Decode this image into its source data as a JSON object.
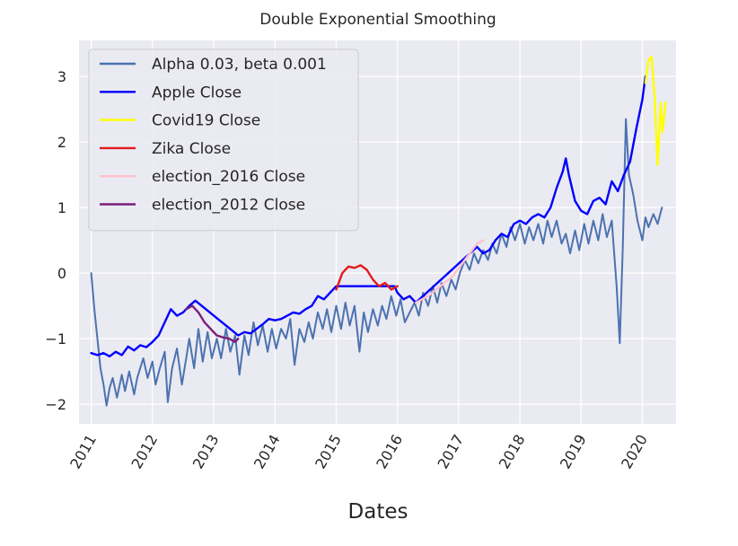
{
  "chart_data": {
    "type": "line",
    "title": "Double Exponential Smoothing",
    "xlabel": "Dates",
    "ylabel": "",
    "xlim": [
      2010.8,
      2020.55
    ],
    "ylim": [
      -2.3,
      3.55
    ],
    "x_ticks": [
      "2011",
      "2012",
      "2013",
      "2014",
      "2015",
      "2016",
      "2017",
      "2018",
      "2019",
      "2020"
    ],
    "y_ticks": [
      {
        "value": -2,
        "label": "−2"
      },
      {
        "value": -1,
        "label": "−1"
      },
      {
        "value": 0,
        "label": "0"
      },
      {
        "value": 1,
        "label": "1"
      },
      {
        "value": 2,
        "label": "2"
      },
      {
        "value": 3,
        "label": "3"
      }
    ],
    "grid": true,
    "legend_position": "top-left",
    "series": [
      {
        "name": "Alpha 0.03, beta 0.001",
        "color": "#4c72b0",
        "points": [
          [
            2011.0,
            0.0
          ],
          [
            2011.05,
            -0.55
          ],
          [
            2011.1,
            -1.0
          ],
          [
            2011.15,
            -1.45
          ],
          [
            2011.2,
            -1.7
          ],
          [
            2011.25,
            -2.02
          ],
          [
            2011.3,
            -1.75
          ],
          [
            2011.35,
            -1.6
          ],
          [
            2011.42,
            -1.9
          ],
          [
            2011.5,
            -1.55
          ],
          [
            2011.55,
            -1.8
          ],
          [
            2011.62,
            -1.5
          ],
          [
            2011.7,
            -1.85
          ],
          [
            2011.75,
            -1.6
          ],
          [
            2011.85,
            -1.3
          ],
          [
            2011.92,
            -1.6
          ],
          [
            2012.0,
            -1.35
          ],
          [
            2012.05,
            -1.7
          ],
          [
            2012.12,
            -1.45
          ],
          [
            2012.2,
            -1.2
          ],
          [
            2012.25,
            -1.97
          ],
          [
            2012.32,
            -1.45
          ],
          [
            2012.4,
            -1.15
          ],
          [
            2012.48,
            -1.7
          ],
          [
            2012.55,
            -1.3
          ],
          [
            2012.6,
            -1.0
          ],
          [
            2012.68,
            -1.45
          ],
          [
            2012.75,
            -0.85
          ],
          [
            2012.82,
            -1.35
          ],
          [
            2012.9,
            -0.9
          ],
          [
            2012.97,
            -1.3
          ],
          [
            2013.05,
            -1.0
          ],
          [
            2013.12,
            -1.3
          ],
          [
            2013.2,
            -0.85
          ],
          [
            2013.27,
            -1.2
          ],
          [
            2013.35,
            -0.95
          ],
          [
            2013.42,
            -1.55
          ],
          [
            2013.5,
            -0.95
          ],
          [
            2013.57,
            -1.25
          ],
          [
            2013.65,
            -0.75
          ],
          [
            2013.72,
            -1.1
          ],
          [
            2013.8,
            -0.8
          ],
          [
            2013.88,
            -1.2
          ],
          [
            2013.95,
            -0.85
          ],
          [
            2014.02,
            -1.15
          ],
          [
            2014.1,
            -0.85
          ],
          [
            2014.18,
            -1.0
          ],
          [
            2014.25,
            -0.7
          ],
          [
            2014.32,
            -1.4
          ],
          [
            2014.4,
            -0.85
          ],
          [
            2014.48,
            -1.05
          ],
          [
            2014.55,
            -0.75
          ],
          [
            2014.62,
            -1.0
          ],
          [
            2014.7,
            -0.6
          ],
          [
            2014.78,
            -0.85
          ],
          [
            2014.85,
            -0.55
          ],
          [
            2014.92,
            -0.9
          ],
          [
            2015.0,
            -0.5
          ],
          [
            2015.08,
            -0.85
          ],
          [
            2015.15,
            -0.45
          ],
          [
            2015.22,
            -0.8
          ],
          [
            2015.3,
            -0.5
          ],
          [
            2015.38,
            -1.2
          ],
          [
            2015.45,
            -0.6
          ],
          [
            2015.52,
            -0.9
          ],
          [
            2015.6,
            -0.55
          ],
          [
            2015.68,
            -0.8
          ],
          [
            2015.75,
            -0.5
          ],
          [
            2015.82,
            -0.7
          ],
          [
            2015.9,
            -0.35
          ],
          [
            2015.98,
            -0.65
          ],
          [
            2016.05,
            -0.4
          ],
          [
            2016.12,
            -0.75
          ],
          [
            2016.2,
            -0.6
          ],
          [
            2016.28,
            -0.45
          ],
          [
            2016.35,
            -0.65
          ],
          [
            2016.42,
            -0.3
          ],
          [
            2016.5,
            -0.5
          ],
          [
            2016.58,
            -0.2
          ],
          [
            2016.65,
            -0.45
          ],
          [
            2016.72,
            -0.15
          ],
          [
            2016.8,
            -0.35
          ],
          [
            2016.88,
            -0.1
          ],
          [
            2016.95,
            -0.25
          ],
          [
            2017.02,
            0.0
          ],
          [
            2017.1,
            0.2
          ],
          [
            2017.18,
            0.05
          ],
          [
            2017.25,
            0.3
          ],
          [
            2017.32,
            0.15
          ],
          [
            2017.4,
            0.35
          ],
          [
            2017.48,
            0.2
          ],
          [
            2017.55,
            0.45
          ],
          [
            2017.62,
            0.3
          ],
          [
            2017.7,
            0.6
          ],
          [
            2017.78,
            0.4
          ],
          [
            2017.85,
            0.7
          ],
          [
            2017.92,
            0.5
          ],
          [
            2018.0,
            0.75
          ],
          [
            2018.08,
            0.45
          ],
          [
            2018.15,
            0.7
          ],
          [
            2018.22,
            0.5
          ],
          [
            2018.3,
            0.75
          ],
          [
            2018.38,
            0.45
          ],
          [
            2018.45,
            0.8
          ],
          [
            2018.52,
            0.55
          ],
          [
            2018.6,
            0.8
          ],
          [
            2018.68,
            0.45
          ],
          [
            2018.75,
            0.6
          ],
          [
            2018.82,
            0.3
          ],
          [
            2018.9,
            0.65
          ],
          [
            2018.97,
            0.35
          ],
          [
            2019.05,
            0.75
          ],
          [
            2019.12,
            0.45
          ],
          [
            2019.2,
            0.8
          ],
          [
            2019.28,
            0.5
          ],
          [
            2019.35,
            0.9
          ],
          [
            2019.42,
            0.55
          ],
          [
            2019.5,
            0.8
          ],
          [
            2019.58,
            -0.2
          ],
          [
            2019.63,
            -1.07
          ],
          [
            2019.68,
            0.4
          ],
          [
            2019.73,
            2.35
          ],
          [
            2019.78,
            1.5
          ],
          [
            2019.85,
            1.2
          ],
          [
            2019.92,
            0.8
          ],
          [
            2020.0,
            0.5
          ],
          [
            2020.05,
            0.85
          ],
          [
            2020.1,
            0.7
          ],
          [
            2020.18,
            0.9
          ],
          [
            2020.25,
            0.75
          ],
          [
            2020.32,
            1.0
          ]
        ]
      },
      {
        "name": "Apple Close",
        "color": "#0000ff",
        "points": [
          [
            2011.0,
            -1.22
          ],
          [
            2011.1,
            -1.25
          ],
          [
            2011.2,
            -1.22
          ],
          [
            2011.3,
            -1.27
          ],
          [
            2011.4,
            -1.2
          ],
          [
            2011.5,
            -1.25
          ],
          [
            2011.6,
            -1.12
          ],
          [
            2011.7,
            -1.18
          ],
          [
            2011.8,
            -1.1
          ],
          [
            2011.9,
            -1.13
          ],
          [
            2012.0,
            -1.05
          ],
          [
            2012.1,
            -0.95
          ],
          [
            2012.2,
            -0.75
          ],
          [
            2012.3,
            -0.55
          ],
          [
            2012.4,
            -0.65
          ],
          [
            2012.5,
            -0.6
          ],
          [
            2012.6,
            -0.5
          ],
          [
            2012.7,
            -0.42
          ],
          [
            2013.4,
            -0.95
          ],
          [
            2013.5,
            -0.9
          ],
          [
            2013.6,
            -0.92
          ],
          [
            2013.7,
            -0.85
          ],
          [
            2013.8,
            -0.78
          ],
          [
            2013.9,
            -0.7
          ],
          [
            2014.0,
            -0.72
          ],
          [
            2014.1,
            -0.7
          ],
          [
            2014.2,
            -0.65
          ],
          [
            2014.3,
            -0.6
          ],
          [
            2014.4,
            -0.62
          ],
          [
            2014.5,
            -0.55
          ],
          [
            2014.6,
            -0.5
          ],
          [
            2014.7,
            -0.35
          ],
          [
            2014.8,
            -0.4
          ],
          [
            2014.9,
            -0.3
          ],
          [
            2015.0,
            -0.2
          ],
          [
            2015.95,
            -0.2
          ],
          [
            2016.0,
            -0.3
          ],
          [
            2016.1,
            -0.4
          ],
          [
            2016.2,
            -0.35
          ],
          [
            2016.3,
            -0.45
          ],
          [
            2017.3,
            0.4
          ],
          [
            2017.4,
            0.3
          ],
          [
            2017.5,
            0.35
          ],
          [
            2017.6,
            0.5
          ],
          [
            2017.7,
            0.6
          ],
          [
            2017.8,
            0.55
          ],
          [
            2017.9,
            0.75
          ],
          [
            2018.0,
            0.8
          ],
          [
            2018.1,
            0.75
          ],
          [
            2018.2,
            0.85
          ],
          [
            2018.3,
            0.9
          ],
          [
            2018.4,
            0.85
          ],
          [
            2018.5,
            1.0
          ],
          [
            2018.6,
            1.3
          ],
          [
            2018.7,
            1.55
          ],
          [
            2018.75,
            1.75
          ],
          [
            2018.8,
            1.5
          ],
          [
            2018.9,
            1.1
          ],
          [
            2019.0,
            0.95
          ],
          [
            2019.1,
            0.9
          ],
          [
            2019.2,
            1.1
          ],
          [
            2019.3,
            1.15
          ],
          [
            2019.4,
            1.05
          ],
          [
            2019.5,
            1.4
          ],
          [
            2019.6,
            1.25
          ],
          [
            2019.7,
            1.5
          ],
          [
            2019.8,
            1.7
          ],
          [
            2019.9,
            2.2
          ],
          [
            2020.0,
            2.65
          ],
          [
            2020.05,
            3.0
          ]
        ]
      },
      {
        "name": "Covid19 Close",
        "color": "#ffff00",
        "points": [
          [
            2020.05,
            2.9
          ],
          [
            2020.1,
            3.25
          ],
          [
            2020.15,
            3.3
          ],
          [
            2020.2,
            2.7
          ],
          [
            2020.25,
            1.65
          ],
          [
            2020.3,
            2.6
          ],
          [
            2020.33,
            2.15
          ],
          [
            2020.38,
            2.6
          ]
        ]
      },
      {
        "name": "Zika Close",
        "color": "#e41a1c",
        "points": [
          [
            2015.0,
            -0.25
          ],
          [
            2015.1,
            0.0
          ],
          [
            2015.2,
            0.1
          ],
          [
            2015.3,
            0.08
          ],
          [
            2015.4,
            0.12
          ],
          [
            2015.5,
            0.05
          ],
          [
            2015.6,
            -0.1
          ],
          [
            2015.7,
            -0.2
          ],
          [
            2015.8,
            -0.15
          ],
          [
            2015.9,
            -0.25
          ],
          [
            2016.0,
            -0.2
          ]
        ]
      },
      {
        "name": "election_2016 Close",
        "color": "#ffc0cb",
        "points": [
          [
            2016.3,
            -0.45
          ],
          [
            2016.5,
            -0.35
          ],
          [
            2016.7,
            -0.2
          ],
          [
            2016.9,
            -0.05
          ],
          [
            2017.1,
            0.2
          ],
          [
            2017.3,
            0.45
          ],
          [
            2017.4,
            0.5
          ]
        ]
      },
      {
        "name": "election_2012 Close",
        "color": "#7b1f7b",
        "points": [
          [
            2012.55,
            -0.55
          ],
          [
            2012.65,
            -0.5
          ],
          [
            2012.75,
            -0.6
          ],
          [
            2012.85,
            -0.75
          ],
          [
            2012.95,
            -0.85
          ],
          [
            2013.05,
            -0.95
          ],
          [
            2013.15,
            -0.98
          ],
          [
            2013.25,
            -1.0
          ],
          [
            2013.35,
            -1.05
          ],
          [
            2013.4,
            -1.0
          ]
        ]
      }
    ]
  }
}
